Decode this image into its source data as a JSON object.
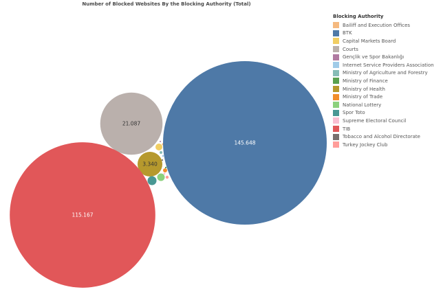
{
  "chart_data": {
    "type": "bubble",
    "title": "Number of Blocked Websites By the Blocking Authority (Total)",
    "legend_title": "Blocking Authority",
    "legend_position": "right",
    "series": [
      {
        "name": "Bailiff and Execution Offices",
        "color": "#f5b97f",
        "value": null
      },
      {
        "name": "BTK",
        "color": "#4e79a7",
        "value": 145648,
        "label": "145.648"
      },
      {
        "name": "Capital Markets Board",
        "color": "#f1ce63",
        "value": null
      },
      {
        "name": "Courts",
        "color": "#bab0ac",
        "value": 21087,
        "label": "21.087"
      },
      {
        "name": "Gençlik ve Spor Bakanlığı",
        "color": "#b07aa1",
        "value": null
      },
      {
        "name": "Internet Service Providers Association",
        "color": "#a0cbe8",
        "value": null
      },
      {
        "name": "Ministry of Agriculture and Forestry",
        "color": "#86bcb6",
        "value": null
      },
      {
        "name": "Ministry of Finance",
        "color": "#59a14f",
        "value": null
      },
      {
        "name": "Ministry of Health",
        "color": "#b6992d",
        "value": 3340,
        "label": "3.340"
      },
      {
        "name": "Ministry of Trade",
        "color": "#f28e2b",
        "value": null
      },
      {
        "name": "National Lottery",
        "color": "#8cd17d",
        "value": null
      },
      {
        "name": "Spor Toto",
        "color": "#499894",
        "value": null
      },
      {
        "name": "Supreme Electoral Council",
        "color": "#fabfd2",
        "value": null
      },
      {
        "name": "TIB",
        "color": "#e15759",
        "value": 115167,
        "label": "115.167"
      },
      {
        "name": "Tobacco and Alcohol Directorate",
        "color": "#79706e",
        "value": null
      },
      {
        "name": "Turkey Jockey Club",
        "color": "#ff9d9a",
        "value": null
      }
    ]
  }
}
